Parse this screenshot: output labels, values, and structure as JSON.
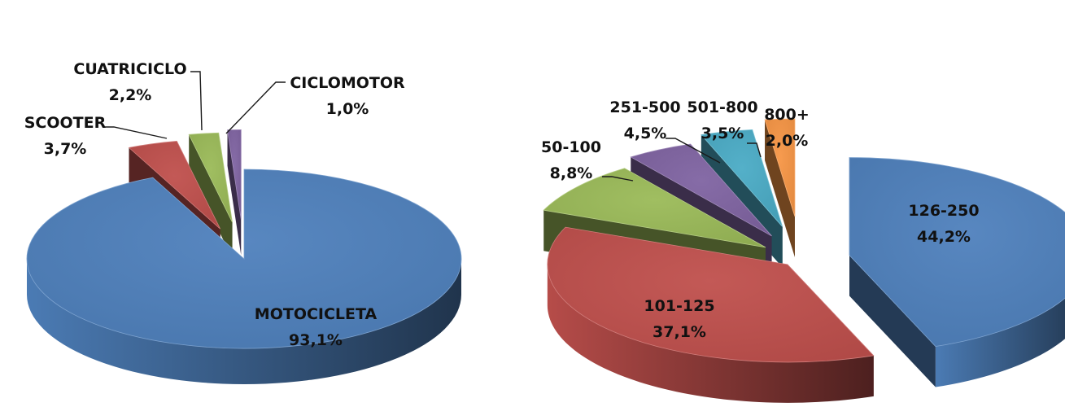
{
  "chart_data": [
    {
      "type": "pie",
      "style": "3d-exploded",
      "title": "",
      "categories": [
        "MOTOCICLETA",
        "SCOOTER",
        "CUATRICICLO",
        "CICLOMOTOR"
      ],
      "values": [
        93.1,
        3.7,
        2.2,
        1.0
      ],
      "value_labels": [
        "93,1%",
        "3,7%",
        "2,2%",
        "1,0%"
      ],
      "colors": [
        "#4f81bd",
        "#c0504d",
        "#9bbb59",
        "#8064a2"
      ],
      "legend": "none"
    },
    {
      "type": "pie",
      "style": "3d-exploded",
      "title": "",
      "categories": [
        "126-250",
        "101-125",
        "50-100",
        "251-500",
        "501-800",
        "800+"
      ],
      "values": [
        44.2,
        37.1,
        8.8,
        4.5,
        3.5,
        2.0
      ],
      "value_labels": [
        "44,2%",
        "37,1%",
        "8,8%",
        "4,5%",
        "3,5%",
        "2,0%"
      ],
      "colors": [
        "#4f81bd",
        "#c0504d",
        "#9bbb59",
        "#8064a2",
        "#4bacc6",
        "#f79646"
      ],
      "legend": "none"
    }
  ]
}
